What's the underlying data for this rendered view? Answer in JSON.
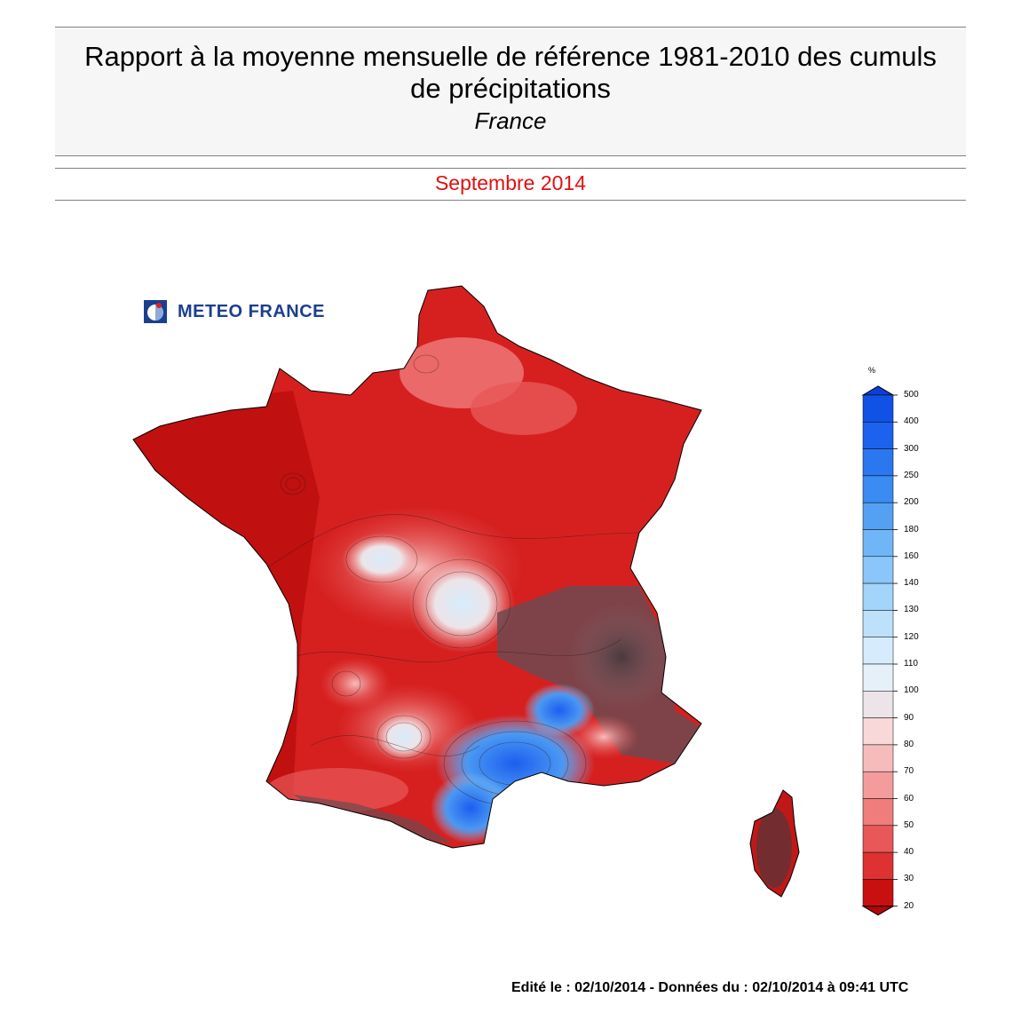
{
  "header": {
    "title_line1": "Rapport à la moyenne mensuelle de référence 1981-2010 des cumuls",
    "title_line2": "de précipitations",
    "subtitle": "France",
    "period": "Septembre 2014"
  },
  "logo": {
    "text": "METEO FRANCE"
  },
  "legend": {
    "unit": "%",
    "ticks": [
      "500",
      "400",
      "300",
      "250",
      "200",
      "180",
      "160",
      "140",
      "130",
      "120",
      "110",
      "100",
      "90",
      "80",
      "70",
      "60",
      "50",
      "40",
      "30",
      "20"
    ],
    "colors": [
      "#1052e6",
      "#1c62ee",
      "#2a77f0",
      "#3a8cf2",
      "#54a1f4",
      "#70b6f7",
      "#8ac6f9",
      "#a3d4fa",
      "#bde1fb",
      "#d6ecfc",
      "#e6f0f8",
      "#ece4e8",
      "#f8d8d8",
      "#f6bcbc",
      "#f49c9c",
      "#f07c7c",
      "#e85858",
      "#de3232",
      "#c81010"
    ]
  },
  "regions": {
    "mainland": "France métropolitaine",
    "corsica": "Corse"
  },
  "footer": {
    "edited_label": "Edité le : ",
    "edited_date": "02/10/2014",
    "data_label": " - Données du : ",
    "data_datetime": "02/10/2014 à 09:41 UTC"
  }
}
